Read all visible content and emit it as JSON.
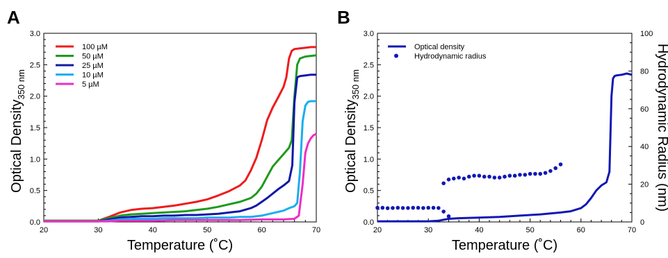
{
  "chart_data": [
    {
      "type": "line",
      "panel_label": "A",
      "xlabel": "Temperature (˚C)",
      "ylabel": "Optical Density",
      "ylabel_sub": "350 nm",
      "xlim": [
        20,
        70
      ],
      "ylim": [
        0,
        3.0
      ],
      "xticks": [
        "20",
        "30",
        "40",
        "50",
        "60",
        "70"
      ],
      "yticks": [
        "0.0",
        "0.5",
        "1.0",
        "1.5",
        "2.0",
        "2.5",
        "3.0"
      ],
      "legend_position": "top-left",
      "grid": false,
      "series": [
        {
          "name": "100 µM",
          "color": "#ee1c1c",
          "points": [
            [
              20,
              0.02
            ],
            [
              29.5,
              0.02
            ],
            [
              30,
              0.02
            ],
            [
              32,
              0.08
            ],
            [
              34,
              0.15
            ],
            [
              36,
              0.19
            ],
            [
              38,
              0.21
            ],
            [
              40,
              0.22
            ],
            [
              42,
              0.24
            ],
            [
              44,
              0.26
            ],
            [
              46,
              0.29
            ],
            [
              48,
              0.32
            ],
            [
              50,
              0.36
            ],
            [
              52,
              0.42
            ],
            [
              54,
              0.49
            ],
            [
              56,
              0.58
            ],
            [
              57,
              0.66
            ],
            [
              58,
              0.82
            ],
            [
              59,
              1.02
            ],
            [
              60,
              1.3
            ],
            [
              61,
              1.62
            ],
            [
              62,
              1.82
            ],
            [
              63,
              1.98
            ],
            [
              64,
              2.15
            ],
            [
              64.5,
              2.3
            ],
            [
              65,
              2.6
            ],
            [
              65.5,
              2.72
            ],
            [
              66,
              2.75
            ],
            [
              67,
              2.76
            ],
            [
              68,
              2.77
            ],
            [
              69,
              2.78
            ],
            [
              70,
              2.78
            ]
          ]
        },
        {
          "name": "50 µM",
          "color": "#1e9a1e",
          "points": [
            [
              20,
              0.02
            ],
            [
              29.5,
              0.02
            ],
            [
              30,
              0.02
            ],
            [
              32,
              0.06
            ],
            [
              34,
              0.1
            ],
            [
              36,
              0.12
            ],
            [
              38,
              0.13
            ],
            [
              40,
              0.14
            ],
            [
              42,
              0.15
            ],
            [
              44,
              0.16
            ],
            [
              46,
              0.17
            ],
            [
              48,
              0.19
            ],
            [
              50,
              0.21
            ],
            [
              52,
              0.24
            ],
            [
              54,
              0.28
            ],
            [
              56,
              0.32
            ],
            [
              58,
              0.38
            ],
            [
              59,
              0.45
            ],
            [
              60,
              0.56
            ],
            [
              61,
              0.72
            ],
            [
              62,
              0.88
            ],
            [
              63,
              0.98
            ],
            [
              64,
              1.08
            ],
            [
              65,
              1.18
            ],
            [
              65.5,
              1.3
            ],
            [
              66,
              2.0
            ],
            [
              66.5,
              2.5
            ],
            [
              67,
              2.6
            ],
            [
              68,
              2.63
            ],
            [
              69,
              2.64
            ],
            [
              70,
              2.65
            ]
          ]
        },
        {
          "name": "25 µM",
          "color": "#1218a6",
          "points": [
            [
              20,
              0.01
            ],
            [
              29.5,
              0.01
            ],
            [
              30,
              0.01
            ],
            [
              32,
              0.04
            ],
            [
              34,
              0.07
            ],
            [
              36,
              0.08
            ],
            [
              38,
              0.09
            ],
            [
              40,
              0.09
            ],
            [
              42,
              0.1
            ],
            [
              44,
              0.1
            ],
            [
              46,
              0.11
            ],
            [
              48,
              0.11
            ],
            [
              50,
              0.12
            ],
            [
              52,
              0.13
            ],
            [
              54,
              0.15
            ],
            [
              56,
              0.17
            ],
            [
              58,
              0.22
            ],
            [
              59,
              0.26
            ],
            [
              60,
              0.32
            ],
            [
              61,
              0.38
            ],
            [
              62,
              0.45
            ],
            [
              63,
              0.52
            ],
            [
              64,
              0.58
            ],
            [
              65,
              0.65
            ],
            [
              65.6,
              0.9
            ],
            [
              66,
              1.9
            ],
            [
              66.5,
              2.3
            ],
            [
              67,
              2.32
            ],
            [
              68,
              2.33
            ],
            [
              69,
              2.34
            ],
            [
              70,
              2.34
            ]
          ]
        },
        {
          "name": "10 µM",
          "color": "#18aef0",
          "points": [
            [
              20,
              0.01
            ],
            [
              30,
              0.01
            ],
            [
              32,
              0.02
            ],
            [
              34,
              0.04
            ],
            [
              36,
              0.05
            ],
            [
              38,
              0.05
            ],
            [
              40,
              0.05
            ],
            [
              42,
              0.06
            ],
            [
              44,
              0.06
            ],
            [
              46,
              0.06
            ],
            [
              48,
              0.06
            ],
            [
              50,
              0.07
            ],
            [
              52,
              0.07
            ],
            [
              54,
              0.07
            ],
            [
              56,
              0.08
            ],
            [
              58,
              0.08
            ],
            [
              60,
              0.1
            ],
            [
              62,
              0.14
            ],
            [
              64,
              0.18
            ],
            [
              65,
              0.22
            ],
            [
              66,
              0.25
            ],
            [
              66.5,
              0.3
            ],
            [
              67,
              0.8
            ],
            [
              67.5,
              1.6
            ],
            [
              68,
              1.85
            ],
            [
              68.5,
              1.91
            ],
            [
              69,
              1.92
            ],
            [
              70,
              1.92
            ]
          ]
        },
        {
          "name": "5 µM",
          "color": "#ee2ec4",
          "points": [
            [
              20,
              0.01
            ],
            [
              30,
              0.01
            ],
            [
              32,
              0.01
            ],
            [
              34,
              0.02
            ],
            [
              36,
              0.02
            ],
            [
              40,
              0.02
            ],
            [
              44,
              0.03
            ],
            [
              48,
              0.03
            ],
            [
              52,
              0.03
            ],
            [
              56,
              0.03
            ],
            [
              60,
              0.04
            ],
            [
              62,
              0.04
            ],
            [
              64,
              0.04
            ],
            [
              66,
              0.05
            ],
            [
              66.8,
              0.1
            ],
            [
              67.5,
              0.6
            ],
            [
              68,
              1.1
            ],
            [
              68.5,
              1.25
            ],
            [
              69,
              1.33
            ],
            [
              69.5,
              1.38
            ],
            [
              70,
              1.4
            ]
          ]
        }
      ]
    },
    {
      "type": "line",
      "panel_label": "B",
      "xlabel": "Temperature (˚C)",
      "ylabel": "Optical Density",
      "ylabel_sub": "350 nm",
      "y2label": "Hydrodynamic Radius (nm)",
      "xlim": [
        20,
        70
      ],
      "ylim": [
        0,
        3.0
      ],
      "y2lim": [
        0,
        100
      ],
      "xticks": [
        "20",
        "30",
        "40",
        "50",
        "60",
        "70"
      ],
      "yticks": [
        "0.0",
        "0.5",
        "1.0",
        "1.5",
        "2.0",
        "2.5",
        "3.0"
      ],
      "y2ticks": [
        "0",
        "20",
        "40",
        "60",
        "80",
        "100"
      ],
      "legend_position": "top-left",
      "grid": false,
      "series": [
        {
          "name": "Optical density",
          "color": "#1218b4",
          "axis": "left",
          "points": [
            [
              20,
              0.01
            ],
            [
              30,
              0.01
            ],
            [
              32,
              0.02
            ],
            [
              34,
              0.05
            ],
            [
              36,
              0.06
            ],
            [
              40,
              0.07
            ],
            [
              44,
              0.08
            ],
            [
              48,
              0.1
            ],
            [
              52,
              0.12
            ],
            [
              56,
              0.15
            ],
            [
              58,
              0.17
            ],
            [
              60,
              0.22
            ],
            [
              61,
              0.28
            ],
            [
              62,
              0.38
            ],
            [
              63,
              0.5
            ],
            [
              64,
              0.58
            ],
            [
              65,
              0.63
            ],
            [
              65.6,
              0.8
            ],
            [
              66,
              2.0
            ],
            [
              66.3,
              2.28
            ],
            [
              66.6,
              2.32
            ],
            [
              67,
              2.33
            ],
            [
              68,
              2.34
            ],
            [
              69,
              2.36
            ],
            [
              70,
              2.34
            ]
          ]
        },
        {
          "name": "Hydrodynamic radius",
          "color": "#1218b4",
          "axis": "right",
          "style": "markers",
          "points": [
            [
              20,
              7.5
            ],
            [
              21,
              7.5
            ],
            [
              22,
              7.3
            ],
            [
              23,
              7.4
            ],
            [
              24,
              7.5
            ],
            [
              25,
              7.4
            ],
            [
              26,
              7.4
            ],
            [
              27,
              7.5
            ],
            [
              28,
              7.5
            ],
            [
              29,
              7.4
            ],
            [
              30,
              7.5
            ],
            [
              31,
              7.5
            ],
            [
              32,
              7.4
            ],
            [
              33,
              5.5
            ],
            [
              34,
              3.0
            ],
            [
              33,
              20.5
            ],
            [
              34,
              22.5
            ],
            [
              35,
              23.0
            ],
            [
              36,
              23.5
            ],
            [
              37,
              23.0
            ],
            [
              38,
              24.0
            ],
            [
              39,
              24.5
            ],
            [
              40,
              24.5
            ],
            [
              41,
              24.0
            ],
            [
              42,
              24.0
            ],
            [
              43,
              23.5
            ],
            [
              44,
              23.5
            ],
            [
              45,
              24.0
            ],
            [
              46,
              24.5
            ],
            [
              47,
              24.5
            ],
            [
              48,
              25.0
            ],
            [
              49,
              25.0
            ],
            [
              50,
              25.5
            ],
            [
              51,
              25.5
            ],
            [
              52,
              25.5
            ],
            [
              53,
              26.0
            ],
            [
              54,
              27.0
            ],
            [
              55,
              28.5
            ],
            [
              56,
              30.5
            ]
          ]
        }
      ]
    }
  ]
}
